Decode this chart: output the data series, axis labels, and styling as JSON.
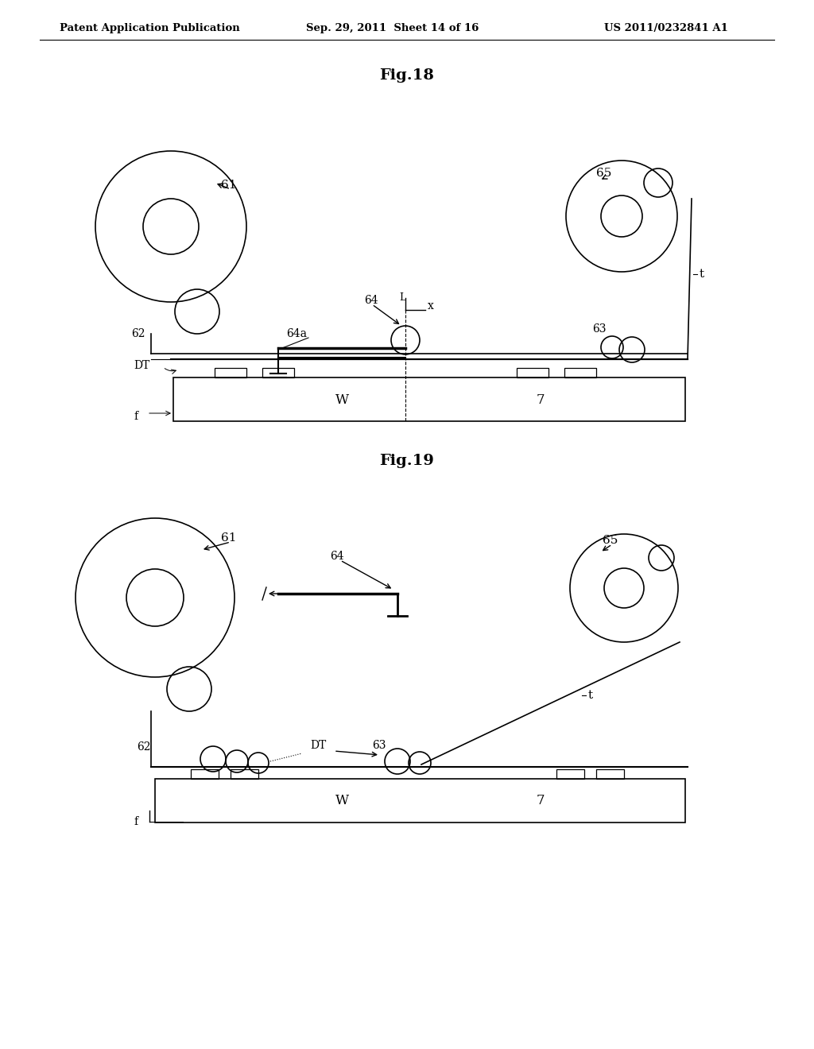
{
  "bg_color": "#ffffff",
  "line_color": "#000000",
  "header_left": "Patent Application Publication",
  "header_mid": "Sep. 29, 2011  Sheet 14 of 16",
  "header_right": "US 2011/0232841 A1",
  "fig18_title": "Fig.18",
  "fig19_title": "Fig.19"
}
